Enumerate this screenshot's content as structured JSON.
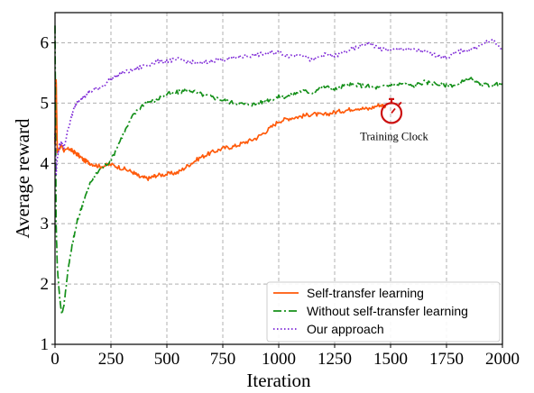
{
  "chart_data": {
    "type": "line",
    "title": "",
    "xlabel": "Iteration",
    "ylabel": "Average reward",
    "xlim": [
      0,
      2000
    ],
    "ylim": [
      1,
      6.5
    ],
    "xticks": [
      "0",
      "250",
      "500",
      "750",
      "1000",
      "1250",
      "1500",
      "1750",
      "2000"
    ],
    "yticks": [
      "1",
      "2",
      "3",
      "4",
      "5",
      "6"
    ],
    "grid": true,
    "legend_position": "lower-right",
    "series": [
      {
        "name": "Self-transfer learning",
        "color": "#ff5a0a",
        "dash": "solid",
        "x": [
          0,
          5,
          10,
          20,
          30,
          40,
          60,
          80,
          100,
          130,
          160,
          200,
          250,
          300,
          350,
          380,
          420,
          450,
          500,
          550,
          600,
          650,
          700,
          750,
          800,
          850,
          900,
          950,
          1000,
          1050,
          1100,
          1150,
          1200,
          1250,
          1300,
          1350,
          1400,
          1450,
          1480
        ],
        "y": [
          4.3,
          5.4,
          4.2,
          4.25,
          4.3,
          4.2,
          4.25,
          4.2,
          4.15,
          4.05,
          4.0,
          3.95,
          3.98,
          3.92,
          3.85,
          3.77,
          3.75,
          3.8,
          3.82,
          3.85,
          3.98,
          4.1,
          4.18,
          4.25,
          4.28,
          4.35,
          4.42,
          4.55,
          4.7,
          4.75,
          4.78,
          4.82,
          4.8,
          4.85,
          4.88,
          4.92,
          4.9,
          4.97,
          4.95
        ]
      },
      {
        "name": "Without self-transfer learning",
        "color": "#15901a",
        "dash": "dashdot",
        "x": [
          0,
          5,
          10,
          20,
          30,
          40,
          60,
          80,
          100,
          130,
          160,
          200,
          250,
          300,
          350,
          400,
          450,
          500,
          550,
          600,
          650,
          700,
          750,
          800,
          850,
          900,
          950,
          1000,
          1050,
          1100,
          1150,
          1200,
          1250,
          1300,
          1350,
          1400,
          1450,
          1500,
          1550,
          1600,
          1650,
          1700,
          1750,
          1800,
          1850,
          1900,
          1950,
          2000
        ],
        "y": [
          6.3,
          3.0,
          2.3,
          1.8,
          1.5,
          1.65,
          2.3,
          2.7,
          3.05,
          3.4,
          3.7,
          3.9,
          4.05,
          4.45,
          4.8,
          5.0,
          5.05,
          5.15,
          5.18,
          5.22,
          5.15,
          5.1,
          5.05,
          5.0,
          4.98,
          4.98,
          5.05,
          5.1,
          5.12,
          5.2,
          5.18,
          5.28,
          5.22,
          5.3,
          5.3,
          5.28,
          5.25,
          5.3,
          5.32,
          5.28,
          5.35,
          5.32,
          5.3,
          5.3,
          5.42,
          5.3,
          5.3,
          5.32
        ]
      },
      {
        "name": "Our approach",
        "color": "#7b24d6",
        "dash": "dotted",
        "x": [
          0,
          5,
          10,
          20,
          30,
          40,
          60,
          80,
          100,
          130,
          160,
          200,
          250,
          300,
          350,
          400,
          450,
          500,
          550,
          600,
          650,
          700,
          750,
          800,
          850,
          900,
          950,
          1000,
          1050,
          1100,
          1150,
          1200,
          1250,
          1300,
          1350,
          1400,
          1450,
          1500,
          1550,
          1600,
          1650,
          1700,
          1750,
          1800,
          1850,
          1900,
          1950,
          2000
        ],
        "y": [
          4.5,
          3.8,
          4.1,
          4.3,
          4.35,
          4.25,
          4.6,
          4.85,
          5.05,
          5.1,
          5.2,
          5.25,
          5.4,
          5.5,
          5.55,
          5.62,
          5.68,
          5.7,
          5.72,
          5.68,
          5.65,
          5.7,
          5.72,
          5.75,
          5.78,
          5.8,
          5.82,
          5.85,
          5.78,
          5.82,
          5.7,
          5.8,
          5.78,
          5.85,
          5.92,
          6.0,
          5.9,
          5.88,
          5.9,
          5.88,
          5.85,
          5.8,
          5.75,
          5.85,
          5.88,
          5.95,
          6.05,
          5.9
        ]
      }
    ],
    "annotation": {
      "text": "Training Clock",
      "icon": "stopwatch-icon",
      "color": "#cc1111",
      "x": 1500,
      "y": 4.85
    }
  }
}
